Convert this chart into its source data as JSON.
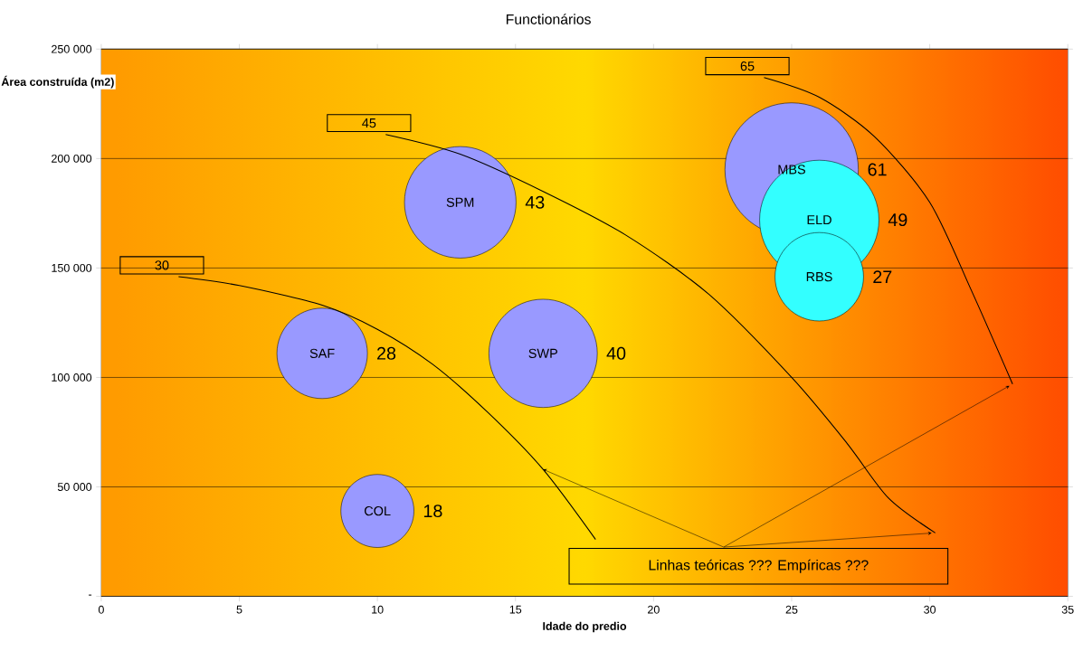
{
  "chart_data": {
    "type": "bubble",
    "title": "Functionários",
    "xlabel": "Idade do predio",
    "ylabel": "Área construída (m2)",
    "xlim": [
      0,
      35
    ],
    "xticks": [
      0,
      5,
      10,
      15,
      20,
      25,
      30,
      35
    ],
    "ylim": [
      0,
      250000
    ],
    "yticks": [
      {
        "value": 0,
        "label": "-"
      },
      {
        "value": 50000,
        "label": "50 000"
      },
      {
        "value": 100000,
        "label": "100 000"
      },
      {
        "value": 150000,
        "label": "150 000"
      },
      {
        "value": 200000,
        "label": "200 000"
      },
      {
        "value": 250000,
        "label": "250 000"
      }
    ],
    "grid": "y",
    "series": [
      {
        "x": [
          13,
          25,
          26,
          26,
          8,
          16,
          10
        ],
        "values": [
          180000,
          195000,
          172000,
          146000,
          111000,
          111000,
          39000
        ],
        "sizes": [
          0.7,
          1,
          0.8,
          0.44,
          0.46,
          0.66,
          0.3
        ],
        "colors": [
          "#9999ff",
          "#9999ff",
          "#33ffff",
          "#33ffff",
          "#9999ff",
          "#9999ff",
          "#9999ff"
        ]
      },
      {
        "type": "line",
        "name": "30",
        "color": "#000000",
        "marker": "none",
        "x": [
          2.8,
          5,
          8,
          10,
          12,
          14,
          16,
          17.9
        ],
        "values": [
          146000,
          142000,
          133000,
          122000,
          106000,
          84000,
          58000,
          26000
        ]
      },
      {
        "type": "line",
        "name": "45",
        "color": "#000000",
        "marker": "none",
        "x": [
          10.3,
          13,
          16,
          19,
          22,
          25,
          27,
          28.5,
          30.2
        ],
        "values": [
          211000,
          202000,
          185000,
          165000,
          138000,
          100000,
          70000,
          45000,
          29000
        ]
      },
      {
        "type": "line",
        "name": "65",
        "color": "#000000",
        "marker": "none",
        "x": [
          24,
          26,
          28,
          30,
          31.5,
          33
        ],
        "values": [
          237000,
          228000,
          210000,
          180000,
          140000,
          97000
        ]
      }
    ],
    "annotations": [
      {
        "text": "SPM",
        "x": 13,
        "y": 180000
      },
      {
        "text": "MBS",
        "x": 25,
        "y": 195000
      },
      {
        "text": "ELD",
        "x": 26,
        "y": 172000
      },
      {
        "text": "RBS",
        "x": 26,
        "y": 146000
      },
      {
        "text": "SAF",
        "x": 8,
        "y": 111000
      },
      {
        "text": "SWP",
        "x": 16,
        "y": 111000
      },
      {
        "text": "COL",
        "x": 10,
        "y": 39000
      },
      "43",
      "61",
      "49",
      "27",
      "28",
      "40",
      "18",
      {
        "text": "Linhas teóricas ??? Empíricas ???",
        "x": 16,
        "y": 58000
      }
    ]
  }
}
